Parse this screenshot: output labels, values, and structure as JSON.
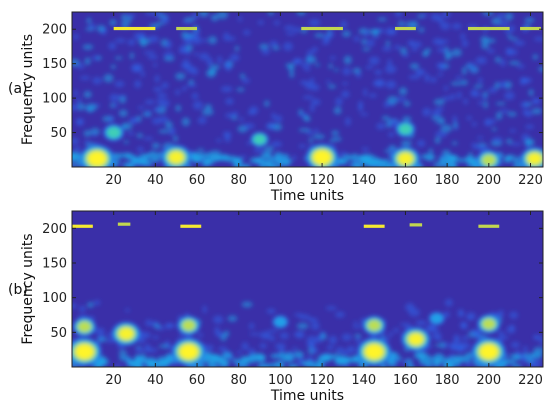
{
  "chart_data": [
    {
      "type": "heatmap",
      "panel_label": "(a)",
      "xlabel": "Time units",
      "ylabel": "Frequency units",
      "xlim": [
        0,
        226
      ],
      "ylim": [
        0,
        225
      ],
      "xticks": [
        20,
        40,
        60,
        80,
        100,
        120,
        140,
        160,
        180,
        200,
        220
      ],
      "yticks": [
        50,
        100,
        150,
        200
      ],
      "colormap": [
        "#3b2aa6",
        "#2f63e6",
        "#1ea7e8",
        "#45d3b0",
        "#c9e04a",
        "#fff42a"
      ],
      "background_color": "#3a2fa8",
      "hotspots": [
        {
          "x": 12,
          "y": 12,
          "intensity": 1.0
        },
        {
          "x": 50,
          "y": 14,
          "intensity": 0.85
        },
        {
          "x": 120,
          "y": 14,
          "intensity": 0.95
        },
        {
          "x": 160,
          "y": 12,
          "intensity": 0.8
        },
        {
          "x": 200,
          "y": 10,
          "intensity": 0.6
        },
        {
          "x": 222,
          "y": 12,
          "intensity": 0.75
        },
        {
          "x": 20,
          "y": 50,
          "intensity": 0.45
        },
        {
          "x": 90,
          "y": 40,
          "intensity": 0.35
        },
        {
          "x": 160,
          "y": 55,
          "intensity": 0.4
        }
      ],
      "harmonic_bands": [
        {
          "x_start": 20,
          "x_end": 40,
          "y": 201,
          "intensity": 0.9
        },
        {
          "x_start": 50,
          "x_end": 60,
          "y": 201,
          "intensity": 0.6
        },
        {
          "x_start": 110,
          "x_end": 130,
          "y": 201,
          "intensity": 0.85
        },
        {
          "x_start": 155,
          "x_end": 165,
          "y": 201,
          "intensity": 0.6
        },
        {
          "x_start": 190,
          "x_end": 210,
          "y": 201,
          "intensity": 0.55
        },
        {
          "x_start": 215,
          "x_end": 225,
          "y": 201,
          "intensity": 0.5
        }
      ]
    },
    {
      "type": "heatmap",
      "panel_label": "(b)",
      "xlabel": "Time units",
      "ylabel": "Frequency units",
      "xlim": [
        0,
        226
      ],
      "ylim": [
        0,
        225
      ],
      "xticks": [
        20,
        40,
        60,
        80,
        100,
        120,
        140,
        160,
        180,
        200,
        220
      ],
      "yticks": [
        50,
        100,
        150,
        200
      ],
      "colormap": [
        "#3b2aa6",
        "#2f63e6",
        "#1ea7e8",
        "#45d3b0",
        "#c9e04a",
        "#fff42a"
      ],
      "background_color": "#3a2fa8",
      "hotspots": [
        {
          "x": 6,
          "y": 22,
          "intensity": 1.0
        },
        {
          "x": 6,
          "y": 58,
          "intensity": 0.55
        },
        {
          "x": 26,
          "y": 48,
          "intensity": 0.8
        },
        {
          "x": 56,
          "y": 22,
          "intensity": 1.0
        },
        {
          "x": 56,
          "y": 60,
          "intensity": 0.55
        },
        {
          "x": 145,
          "y": 22,
          "intensity": 1.0
        },
        {
          "x": 145,
          "y": 60,
          "intensity": 0.55
        },
        {
          "x": 165,
          "y": 40,
          "intensity": 0.8
        },
        {
          "x": 200,
          "y": 22,
          "intensity": 1.0
        },
        {
          "x": 200,
          "y": 62,
          "intensity": 0.55
        },
        {
          "x": 100,
          "y": 65,
          "intensity": 0.25
        },
        {
          "x": 175,
          "y": 70,
          "intensity": 0.25
        }
      ],
      "harmonic_bands": [
        {
          "x_start": 0,
          "x_end": 10,
          "y": 203,
          "intensity": 0.9
        },
        {
          "x_start": 22,
          "x_end": 28,
          "y": 206,
          "intensity": 0.5
        },
        {
          "x_start": 52,
          "x_end": 62,
          "y": 203,
          "intensity": 0.9
        },
        {
          "x_start": 140,
          "x_end": 150,
          "y": 203,
          "intensity": 0.9
        },
        {
          "x_start": 162,
          "x_end": 168,
          "y": 205,
          "intensity": 0.6
        },
        {
          "x_start": 195,
          "x_end": 205,
          "y": 203,
          "intensity": 0.85
        }
      ]
    }
  ]
}
